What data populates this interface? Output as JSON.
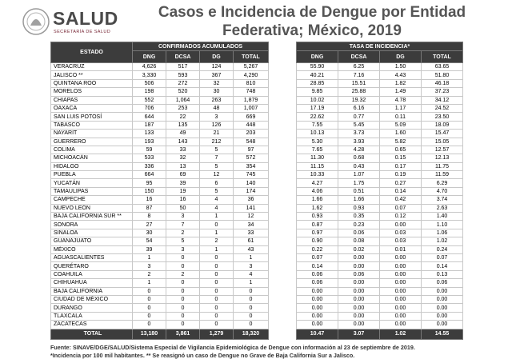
{
  "logo": {
    "name": "SALUD",
    "subtitle": "SECRETARÍA DE SALUD"
  },
  "header": {
    "title_line1": "Casos  e Incidencia de Dengue por Entidad",
    "title_line2": "Federativa; México, 2019"
  },
  "table": {
    "state_label": "ESTADO",
    "group_headers": [
      "CONFIRMADOS ACUMULADOS",
      "TASA DE INCIDENCIA*"
    ],
    "columns": [
      "DNG",
      "DCSA",
      "DG",
      "TOTAL",
      "DNG",
      "DCSA",
      "DG",
      "TOTAL"
    ],
    "rows": [
      [
        "VERACRUZ",
        "4,626",
        "517",
        "124",
        "5,267",
        "55.90",
        "6.25",
        "1.50",
        "63.65"
      ],
      [
        "JALISCO **",
        "3,330",
        "593",
        "367",
        "4,290",
        "40.21",
        "7.16",
        "4.43",
        "51.80"
      ],
      [
        "QUINTANA ROO",
        "506",
        "272",
        "32",
        "810",
        "28.85",
        "15.51",
        "1.82",
        "46.18"
      ],
      [
        "MORELOS",
        "198",
        "520",
        "30",
        "748",
        "9.85",
        "25.88",
        "1.49",
        "37.23"
      ],
      [
        "CHIAPAS",
        "552",
        "1,064",
        "263",
        "1,879",
        "10.02",
        "19.32",
        "4.78",
        "34.12"
      ],
      [
        "OAXACA",
        "706",
        "253",
        "48",
        "1,007",
        "17.19",
        "6.16",
        "1.17",
        "24.52"
      ],
      [
        "SAN LUIS POTOSÍ",
        "644",
        "22",
        "3",
        "669",
        "22.62",
        "0.77",
        "0.11",
        "23.50"
      ],
      [
        "TABASCO",
        "187",
        "135",
        "126",
        "448",
        "7.55",
        "5.45",
        "5.09",
        "18.09"
      ],
      [
        "NAYARIT",
        "133",
        "49",
        "21",
        "203",
        "10.13",
        "3.73",
        "1.60",
        "15.47"
      ],
      [
        "GUERRERO",
        "193",
        "143",
        "212",
        "548",
        "5.30",
        "3.93",
        "5.82",
        "15.05"
      ],
      [
        "COLIMA",
        "59",
        "33",
        "5",
        "97",
        "7.65",
        "4.28",
        "0.65",
        "12.57"
      ],
      [
        "MICHOACÁN",
        "533",
        "32",
        "7",
        "572",
        "11.30",
        "0.68",
        "0.15",
        "12.13"
      ],
      [
        "HIDALGO",
        "336",
        "13",
        "5",
        "354",
        "11.15",
        "0.43",
        "0.17",
        "11.75"
      ],
      [
        "PUEBLA",
        "664",
        "69",
        "12",
        "745",
        "10.33",
        "1.07",
        "0.19",
        "11.59"
      ],
      [
        "YUCATÁN",
        "95",
        "39",
        "6",
        "140",
        "4.27",
        "1.75",
        "0.27",
        "6.29"
      ],
      [
        "TAMAULIPAS",
        "150",
        "19",
        "5",
        "174",
        "4.06",
        "0.51",
        "0.14",
        "4.70"
      ],
      [
        "CAMPECHE",
        "16",
        "16",
        "4",
        "36",
        "1.66",
        "1.66",
        "0.42",
        "3.74"
      ],
      [
        "NUEVO LEÓN",
        "87",
        "50",
        "4",
        "141",
        "1.62",
        "0.93",
        "0.07",
        "2.63"
      ],
      [
        "BAJA CALIFORNIA SUR **",
        "8",
        "3",
        "1",
        "12",
        "0.93",
        "0.35",
        "0.12",
        "1.40"
      ],
      [
        "SONORA",
        "27",
        "7",
        "0",
        "34",
        "0.87",
        "0.23",
        "0.00",
        "1.10"
      ],
      [
        "SINALOA",
        "30",
        "2",
        "1",
        "33",
        "0.97",
        "0.06",
        "0.03",
        "1.06"
      ],
      [
        "GUANAJUATO",
        "54",
        "5",
        "2",
        "61",
        "0.90",
        "0.08",
        "0.03",
        "1.02"
      ],
      [
        "MÉXICO",
        "39",
        "3",
        "1",
        "43",
        "0.22",
        "0.02",
        "0.01",
        "0.24"
      ],
      [
        "AGUASCALIENTES",
        "1",
        "0",
        "0",
        "1",
        "0.07",
        "0.00",
        "0.00",
        "0.07"
      ],
      [
        "QUERÉTARO",
        "3",
        "0",
        "0",
        "3",
        "0.14",
        "0.00",
        "0.00",
        "0.14"
      ],
      [
        "COAHUILA",
        "2",
        "2",
        "0",
        "4",
        "0.06",
        "0.06",
        "0.00",
        "0.13"
      ],
      [
        "CHIHUAHUA",
        "1",
        "0",
        "0",
        "1",
        "0.06",
        "0.00",
        "0.00",
        "0.06"
      ],
      [
        "BAJA CALIFORNIA",
        "0",
        "0",
        "0",
        "0",
        "0.00",
        "0.00",
        "0.00",
        "0.00"
      ],
      [
        "CIUDAD DE MÉXICO",
        "0",
        "0",
        "0",
        "0",
        "0.00",
        "0.00",
        "0.00",
        "0.00"
      ],
      [
        "DURANGO",
        "0",
        "0",
        "0",
        "0",
        "0.00",
        "0.00",
        "0.00",
        "0.00"
      ],
      [
        "TLAXCALA",
        "0",
        "0",
        "0",
        "0",
        "0.00",
        "0.00",
        "0.00",
        "0.00"
      ],
      [
        "ZACATECAS",
        "0",
        "0",
        "0",
        "0",
        "0.00",
        "0.00",
        "0.00",
        "0.00"
      ]
    ],
    "total": [
      "TOTAL",
      "13,180",
      "3,861",
      "1,279",
      "18,320",
      "10.47",
      "3.07",
      "1.02",
      "14.55"
    ]
  },
  "footnotes": [
    "Fuente: SINAVE/DGE/SALUD/Sistema Especial de Vigilancia Epidemiológica de Dengue con información al 23 de septiembre de 2019.",
    "*Incidencia por 100 mil habitantes. ** Se reasignó un caso de Dengue no Grave de Baja California Sur a Jalisco."
  ]
}
